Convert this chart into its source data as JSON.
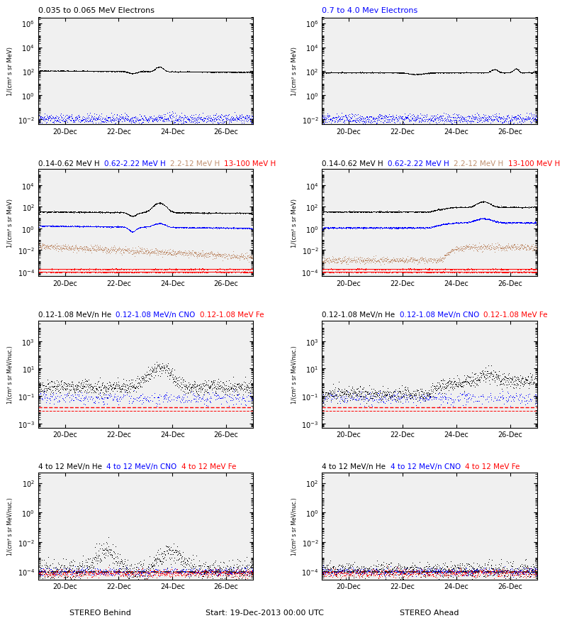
{
  "title_row1_left_text": "0.035 to 0.065 MeV Electrons",
  "title_row1_left_color": "black",
  "title_row1_right_text": "0.7 to 4.0 Mev Electrons",
  "title_row1_right_color": "blue",
  "title_row2_left": [
    {
      "text": "0.14-0.62 MeV H",
      "color": "black"
    },
    {
      "text": "0.62-2.22 MeV H",
      "color": "blue"
    },
    {
      "text": "2.2-12 MeV H",
      "color": "#c09070"
    },
    {
      "text": "13-100 MeV H",
      "color": "red"
    }
  ],
  "title_row2_right": [
    {
      "text": "0.14-0.62 MeV H",
      "color": "black"
    },
    {
      "text": "0.62-2.22 MeV H",
      "color": "blue"
    },
    {
      "text": "2.2-12 MeV H",
      "color": "#c09070"
    },
    {
      "text": "13-100 MeV H",
      "color": "red"
    }
  ],
  "title_row3_left": [
    {
      "text": "0.12-1.08 MeV/n He",
      "color": "black"
    },
    {
      "text": "0.12-1.08 MeV/n CNO",
      "color": "blue"
    },
    {
      "text": "0.12-1.08 MeV Fe",
      "color": "red"
    }
  ],
  "title_row3_right": [
    {
      "text": "0.12-1.08 MeV/n He",
      "color": "black"
    },
    {
      "text": "0.12-1.08 MeV/n CNO",
      "color": "blue"
    },
    {
      "text": "0.12-1.08 MeV Fe",
      "color": "red"
    }
  ],
  "title_row4_left": [
    {
      "text": "4 to 12 MeV/n He",
      "color": "black"
    },
    {
      "text": "4 to 12 MeV/n CNO",
      "color": "blue"
    },
    {
      "text": "4 to 12 MeV Fe",
      "color": "red"
    }
  ],
  "title_row4_right": [
    {
      "text": "4 to 12 MeV/n He",
      "color": "black"
    },
    {
      "text": "4 to 12 MeV/n CNO",
      "color": "blue"
    },
    {
      "text": "4 to 12 MeV Fe",
      "color": "red"
    }
  ],
  "ylabel_mev": "1/(cm² s sr MeV)",
  "ylabel_nucl": "1/(cm² s sr MeV/nuc.)",
  "xlabel_left": "STEREO Behind",
  "xlabel_center": "Start: 19-Dec-2013 00:00 UTC",
  "xlabel_right": "STEREO Ahead",
  "xtick_labels": [
    "20-Dec",
    "22-Dec",
    "24-Dec",
    "26-Dec"
  ],
  "xtick_days": [
    1,
    3,
    5,
    7
  ],
  "xlim": [
    0,
    8
  ],
  "bg_color": "#f0f0f0"
}
